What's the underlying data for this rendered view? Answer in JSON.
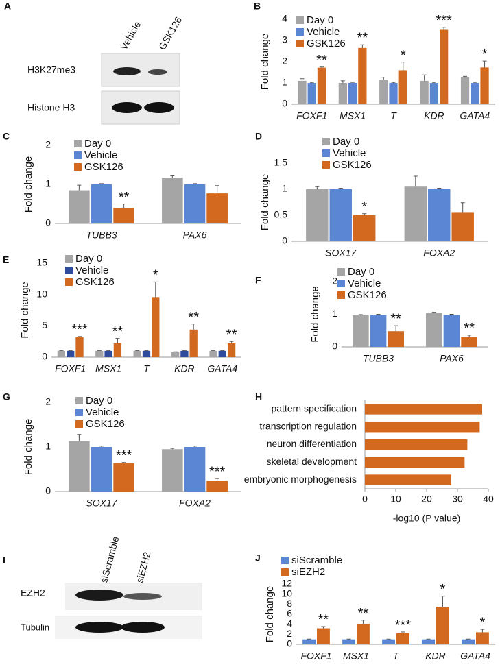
{
  "chart_data": [
    {
      "panel": "B",
      "type": "bar",
      "ylabel": "Fold change",
      "categories": [
        "FOXF1",
        "MSX1",
        "T",
        "KDR",
        "GATA4"
      ],
      "series": [
        {
          "name": "Day 0",
          "color": "#a5a5a5",
          "values": [
            1.1,
            1.0,
            1.15,
            1.1,
            1.28
          ],
          "errors": [
            0.1,
            0.1,
            0.12,
            0.28,
            0.03
          ]
        },
        {
          "name": "Vehicle",
          "color": "#5b86d4",
          "values": [
            1.0,
            1.0,
            1.0,
            1.0,
            1.0
          ],
          "errors": [
            0.03,
            0.03,
            0.03,
            0.03,
            0.03
          ]
        },
        {
          "name": "GSK126",
          "color": "#d2691e",
          "values": [
            1.72,
            2.65,
            1.6,
            3.5,
            1.73
          ],
          "errors": [
            0.03,
            0.15,
            0.38,
            0.12,
            0.3
          ]
        }
      ],
      "significance": [
        "**",
        "**",
        "*",
        "***",
        "*"
      ],
      "ylim": [
        0,
        4
      ],
      "yticks": [
        0,
        1,
        2,
        3,
        4
      ],
      "legend": "upper left"
    },
    {
      "panel": "C",
      "type": "bar",
      "ylabel": "Fold change",
      "categories": [
        "TUBB3",
        "PAX6"
      ],
      "series": [
        {
          "name": "Day 0",
          "color": "#a5a5a5",
          "values": [
            0.85,
            1.17
          ],
          "errors": [
            0.13,
            0.05
          ]
        },
        {
          "name": "Vehicle",
          "color": "#5b86d4",
          "values": [
            1.0,
            1.0
          ],
          "errors": [
            0.02,
            0.02
          ]
        },
        {
          "name": "GSK126",
          "color": "#d2691e",
          "values": [
            0.4,
            0.77
          ],
          "errors": [
            0.1,
            0.2
          ]
        }
      ],
      "significance": [
        "**",
        null
      ],
      "ylim": [
        0,
        2
      ],
      "yticks": [
        0,
        1,
        2
      ],
      "legend": "upper left"
    },
    {
      "panel": "D",
      "type": "bar",
      "ylabel": "Fold change",
      "categories": [
        "SOX17",
        "FOXA2"
      ],
      "series": [
        {
          "name": "Day 0",
          "color": "#a5a5a5",
          "values": [
            1.0,
            1.05
          ],
          "errors": [
            0.05,
            0.2
          ]
        },
        {
          "name": "Vehicle",
          "color": "#5b86d4",
          "values": [
            1.0,
            1.0
          ],
          "errors": [
            0.02,
            0.02
          ]
        },
        {
          "name": "GSK126",
          "color": "#d2691e",
          "values": [
            0.5,
            0.56
          ],
          "errors": [
            0.03,
            0.18
          ]
        }
      ],
      "significance": [
        "*",
        null
      ],
      "ylim": [
        0,
        1.5
      ],
      "yticks": [
        0,
        0.5,
        1,
        1.5
      ],
      "legend": "upper left"
    },
    {
      "panel": "E",
      "type": "bar",
      "ylabel": "Fold change",
      "categories": [
        "FOXF1",
        "MSX1",
        "T",
        "KDR",
        "GATA4"
      ],
      "series": [
        {
          "name": "Day 0",
          "color": "#a5a5a5",
          "values": [
            1.0,
            1.0,
            1.0,
            0.8,
            1.0
          ],
          "errors": [
            0.05,
            0.05,
            0.05,
            0.05,
            0.05
          ]
        },
        {
          "name": "Vehicle",
          "color": "#2f4b9c",
          "values": [
            1.0,
            1.0,
            1.0,
            1.0,
            1.0
          ],
          "errors": [
            0.05,
            0.05,
            0.05,
            0.05,
            0.05
          ]
        },
        {
          "name": "GSK126",
          "color": "#d2691e",
          "values": [
            3.2,
            2.2,
            9.6,
            4.4,
            2.2
          ],
          "errors": [
            0.1,
            0.8,
            2.4,
            0.9,
            0.3
          ]
        }
      ],
      "significance": [
        "***",
        "**",
        "*",
        "**",
        "**"
      ],
      "ylim": [
        0,
        15
      ],
      "yticks": [
        0,
        5,
        10,
        15
      ],
      "legend": "upper left"
    },
    {
      "panel": "F",
      "type": "bar",
      "ylabel": "Fold change",
      "categories": [
        "TUBB3",
        "PAX6"
      ],
      "series": [
        {
          "name": "Day 0",
          "color": "#a5a5a5",
          "values": [
            0.97,
            1.04
          ],
          "errors": [
            0.02,
            0.02
          ]
        },
        {
          "name": "Vehicle",
          "color": "#5b86d4",
          "values": [
            0.98,
            0.98
          ],
          "errors": [
            0.02,
            0.02
          ]
        },
        {
          "name": "GSK126",
          "color": "#d2691e",
          "values": [
            0.48,
            0.3
          ],
          "errors": [
            0.17,
            0.06
          ]
        }
      ],
      "significance": [
        "**",
        "**"
      ],
      "ylim": [
        0,
        2
      ],
      "yticks": [
        0,
        1,
        2
      ],
      "legend": "upper left"
    },
    {
      "panel": "G",
      "type": "bar",
      "ylabel": "Fold change",
      "categories": [
        "SOX17",
        "FOXA2"
      ],
      "series": [
        {
          "name": "Day 0",
          "color": "#a5a5a5",
          "values": [
            1.13,
            0.95
          ],
          "errors": [
            0.15,
            0.02
          ]
        },
        {
          "name": "Vehicle",
          "color": "#5b86d4",
          "values": [
            1.0,
            1.0
          ],
          "errors": [
            0.02,
            0.02
          ]
        },
        {
          "name": "GSK126",
          "color": "#d2691e",
          "values": [
            0.63,
            0.24
          ],
          "errors": [
            0.02,
            0.05
          ]
        }
      ],
      "significance": [
        "***",
        "***"
      ],
      "ylim": [
        0,
        2
      ],
      "yticks": [
        0,
        1,
        2
      ],
      "legend": "upper left"
    },
    {
      "panel": "H",
      "type": "barh",
      "categories": [
        "pattern specification",
        "transcription regulation",
        "neuron differentiation",
        "skeletal development",
        "embryonic morphogenesis"
      ],
      "values": [
        38,
        37.2,
        33.2,
        32.3,
        28
      ],
      "color": "#d2691e",
      "xlabel": "-log10 (P value)",
      "xlim": [
        0,
        40
      ],
      "xticks": [
        0,
        10,
        20,
        30,
        40
      ]
    },
    {
      "panel": "J",
      "type": "bar",
      "ylabel": "Fold change",
      "categories": [
        "FOXF1",
        "MSX1",
        "T",
        "KDR",
        "GATA4"
      ],
      "series": [
        {
          "name": "siScramble",
          "color": "#5b86d4",
          "values": [
            1.0,
            1.0,
            1.0,
            1.0,
            1.0
          ],
          "errors": [
            0.05,
            0.05,
            0.05,
            0.05,
            0.05
          ]
        },
        {
          "name": "siEZH2",
          "color": "#d2691e",
          "values": [
            3.2,
            4.1,
            2.2,
            7.5,
            2.4
          ],
          "errors": [
            0.35,
            0.7,
            0.25,
            2.1,
            0.6
          ]
        }
      ],
      "significance": [
        "**",
        "**",
        "***",
        "*",
        "*"
      ],
      "ylim": [
        0,
        12
      ],
      "yticks": [
        0,
        2,
        4,
        6,
        8,
        10,
        12
      ],
      "legend": "upper left"
    }
  ],
  "blots": [
    {
      "panel": "A",
      "lanes": [
        "Vehicle",
        "GSK126"
      ],
      "rows": [
        "H3K27me3",
        "Histone H3"
      ]
    },
    {
      "panel": "I",
      "lanes": [
        "siScramble",
        "siEZH2"
      ],
      "rows": [
        "EZH2",
        "Tubulin"
      ]
    }
  ]
}
